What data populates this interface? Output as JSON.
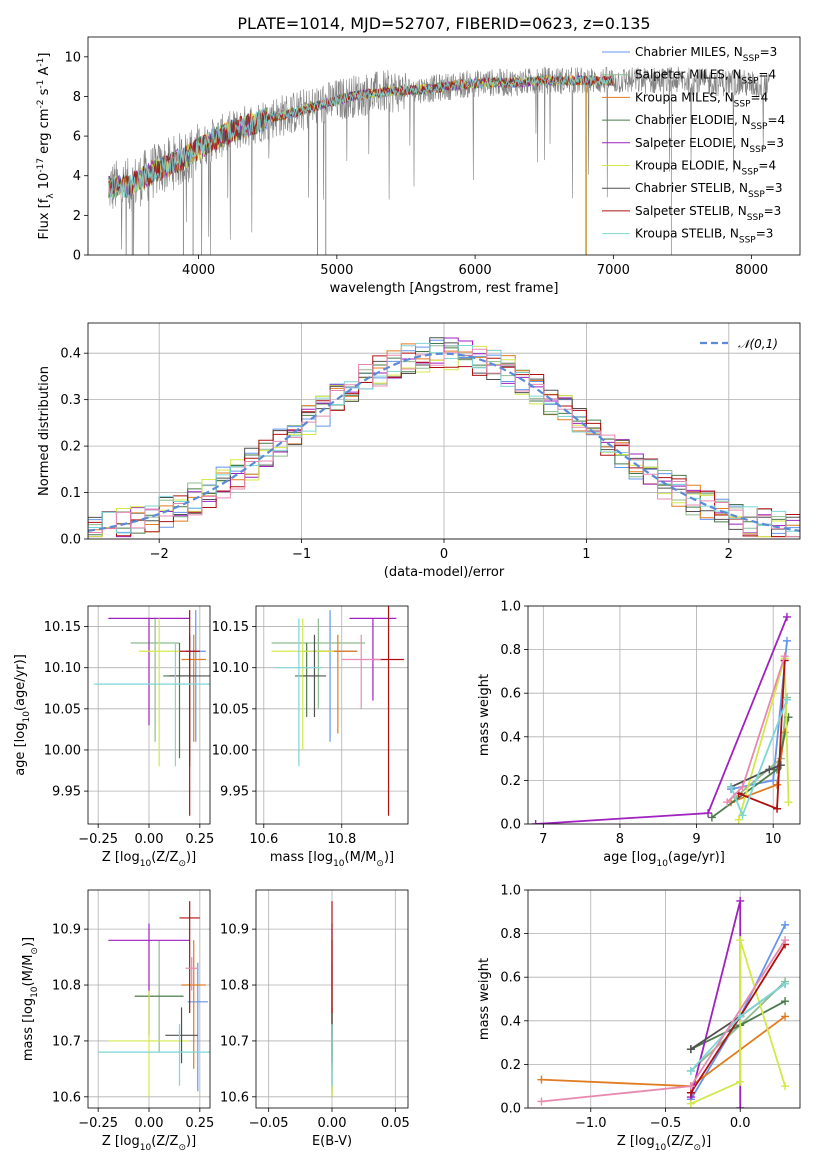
{
  "chart_data": [
    {
      "id": "spectrum",
      "type": "line",
      "title": "PLATE=1014, MJD=52707, FIBERID=0623, z=0.135",
      "xlabel": "wavelength [Angstrom, rest frame]",
      "ylabel": "Flux [f$_\\lambda 10^{-17}$ erg cm$^{-2}$ s$^{-1}$ A$^{-1}$]",
      "xlim": [
        3200,
        8350
      ],
      "ylim": [
        0,
        11
      ],
      "xticks": [
        4000,
        5000,
        6000,
        7000,
        8000
      ],
      "yticks": [
        0,
        2,
        4,
        6,
        8,
        10
      ],
      "grid": false,
      "legend_position": "upper right",
      "continuum": {
        "x": [
          3350,
          3500,
          3700,
          3900,
          4100,
          4300,
          4500,
          4700,
          4900,
          5100,
          5300,
          5500,
          5700,
          5900,
          6100,
          6300,
          6500,
          6700,
          6900,
          7100,
          7300,
          7500,
          7700,
          7900,
          8100
        ],
        "y": [
          3.4,
          3.5,
          4.3,
          4.9,
          5.8,
          6.4,
          6.9,
          7.2,
          7.6,
          8.0,
          8.2,
          8.3,
          8.4,
          8.6,
          8.7,
          8.7,
          8.8,
          8.8,
          8.8,
          8.8,
          8.8,
          8.8,
          8.7,
          8.7,
          8.5
        ]
      },
      "data_x_range": [
        3350,
        8130
      ],
      "model_x_range": [
        3350,
        7000
      ],
      "series": [
        {
          "name": "Chabrier MILES, N$_{SSP}$=3",
          "color": "#6495ed"
        },
        {
          "name": "Salpeter MILES, N$_{SSP}$=4",
          "color": "#8fbc8f"
        },
        {
          "name": "Kroupa MILES, N$_{SSP}$=4",
          "color": "#e07b20"
        },
        {
          "name": "Chabrier ELODIE, N$_{SSP}$=4",
          "color": "#4a7a4a"
        },
        {
          "name": "Salpeter ELODIE, N$_{SSP}$=3",
          "color": "#a020c0"
        },
        {
          "name": "Kroupa ELODIE, N$_{SSP}$=4",
          "color": "#d4e84a"
        },
        {
          "name": "Chabrier STELIB, N$_{SSP}$=3",
          "color": "#505050"
        },
        {
          "name": "Salpeter STELIB, N$_{SSP}$=3",
          "color": "#b01010"
        },
        {
          "name": "Kroupa STELIB, N$_{SSP}$=3",
          "color": "#7fd6d6"
        }
      ]
    },
    {
      "id": "residuals",
      "type": "bar",
      "xlabel": "(data-model)/error",
      "ylabel": "Normed distribution",
      "xlim": [
        -2.5,
        2.5
      ],
      "ylim": [
        0,
        0.465
      ],
      "xticks": [
        -2,
        -1,
        0,
        1,
        2
      ],
      "yticks": [
        0.0,
        0.1,
        0.2,
        0.3,
        0.4
      ],
      "grid": true,
      "legend_position": "upper right",
      "legend": "$\\mathcal{N}(0,1)$",
      "normal_curve": {
        "mean": 0,
        "sigma": 1,
        "color": "#5b8bd6"
      },
      "bin_width": 0.1,
      "bin_start": -2.5,
      "hist_colors": [
        "#6495ed",
        "#8fbc8f",
        "#e07b20",
        "#4a7a4a",
        "#a020c0",
        "#d4e84a",
        "#505050",
        "#b01010",
        "#7fd6d6",
        "#e88ab0"
      ]
    },
    {
      "id": "age-vs-Z",
      "type": "scatter",
      "xlabel": "Z [log$_{10}$(Z/Z$_\\odot$)]",
      "ylabel": "age  [log$_{10}$(age/yr)]",
      "xlim": [
        -0.3,
        0.3
      ],
      "ylim": [
        9.91,
        10.175
      ],
      "xticks": [
        -0.25,
        0.0,
        0.25
      ],
      "xtick_labels": [
        "−0.25",
        "0.00",
        "0.25"
      ],
      "yticks": [
        9.95,
        10.0,
        10.05,
        10.1,
        10.15
      ],
      "ytick_labels": [
        "9.95",
        "10.00",
        "10.05",
        "10.10",
        "10.15"
      ],
      "grid": true,
      "points": [
        {
          "x": 0.23,
          "y": 10.12,
          "xerr": [
            0.05,
            0.05
          ],
          "yerr": [
            0.11,
            0.05
          ],
          "color": "#6495ed"
        },
        {
          "x": 0.03,
          "y": 10.13,
          "xerr": [
            0.12,
            0.12
          ],
          "yerr": [
            0.12,
            0.03
          ],
          "color": "#8fbc8f"
        },
        {
          "x": 0.22,
          "y": 10.11,
          "xerr": [
            0.06,
            0.06
          ],
          "yerr": [
            0.1,
            0.03
          ],
          "color": "#e07b20"
        },
        {
          "x": 0.15,
          "y": 10.09,
          "xerr": [
            0.08,
            0.08
          ],
          "yerr": [
            0.1,
            0.04
          ],
          "color": "#4a7a4a"
        },
        {
          "x": 0.0,
          "y": 10.16,
          "xerr": [
            0.2,
            0.2
          ],
          "yerr": [
            0.13,
            0.0
          ],
          "color": "#a020c0"
        },
        {
          "x": 0.05,
          "y": 10.12,
          "xerr": [
            0.1,
            0.1
          ],
          "yerr": [
            0.14,
            0.04
          ],
          "color": "#d4e84a"
        },
        {
          "x": 0.2,
          "y": 10.09,
          "xerr": [
            0.1,
            0.1
          ],
          "yerr": [
            0.11,
            0.05
          ],
          "color": "#505050"
        },
        {
          "x": 0.2,
          "y": 10.12,
          "xerr": [
            0.05,
            0.05
          ],
          "yerr": [
            0.2,
            0.05
          ],
          "color": "#b01010"
        },
        {
          "x": 0.13,
          "y": 10.08,
          "xerr": [
            0.4,
            0.4
          ],
          "yerr": [
            0.1,
            0.05
          ],
          "color": "#7fd6d6"
        }
      ]
    },
    {
      "id": "age-vs-mass",
      "type": "scatter",
      "xlabel": "mass [log$_{10}$(M/M$_\\odot$)]",
      "xlim": [
        10.58,
        10.97
      ],
      "ylim": [
        9.91,
        10.175
      ],
      "xticks": [
        10.6,
        10.8
      ],
      "xtick_labels": [
        "10.6",
        "10.8"
      ],
      "yticks": [
        9.95,
        10.0,
        10.05,
        10.1,
        10.15
      ],
      "ytick_labels": [
        "9.95",
        "10.00",
        "10.05",
        "10.10",
        "10.15"
      ],
      "grid": true,
      "points": [
        {
          "x": 10.77,
          "y": 10.12,
          "xerr": [
            0.07,
            0.07
          ],
          "yerr": [
            0.11,
            0.05
          ],
          "color": "#6495ed"
        },
        {
          "x": 10.74,
          "y": 10.13,
          "xerr": [
            0.12,
            0.12
          ],
          "yerr": [
            0.08,
            0.03
          ],
          "color": "#8fbc8f"
        },
        {
          "x": 10.79,
          "y": 10.12,
          "xerr": [
            0.05,
            0.05
          ],
          "yerr": [
            0.1,
            0.02
          ],
          "color": "#e07b20"
        },
        {
          "x": 10.71,
          "y": 10.09,
          "xerr": [
            0.03,
            0.03
          ],
          "yerr": [
            0.05,
            0.04
          ],
          "color": "#4a7a4a"
        },
        {
          "x": 10.88,
          "y": 10.16,
          "xerr": [
            0.06,
            0.06
          ],
          "yerr": [
            0.1,
            0.0
          ],
          "color": "#a020c0"
        },
        {
          "x": 10.7,
          "y": 10.12,
          "xerr": [
            0.08,
            0.08
          ],
          "yerr": [
            0.12,
            0.04
          ],
          "color": "#d4e84a"
        },
        {
          "x": 10.73,
          "y": 10.09,
          "xerr": [
            0.03,
            0.03
          ],
          "yerr": [
            0.05,
            0.05
          ],
          "color": "#505050"
        },
        {
          "x": 10.92,
          "y": 10.11,
          "xerr": [
            0.04,
            0.04
          ],
          "yerr": [
            0.19,
            0.07
          ],
          "color": "#b01010"
        },
        {
          "x": 10.69,
          "y": 10.1,
          "xerr": [
            0.06,
            0.06
          ],
          "yerr": [
            0.12,
            0.06
          ],
          "color": "#7fd6d6"
        },
        {
          "x": 10.85,
          "y": 10.11,
          "xerr": [
            0.05,
            0.05
          ],
          "yerr": [
            0.06,
            0.03
          ],
          "color": "#e88ab0"
        }
      ]
    },
    {
      "id": "mass-weight-vs-age",
      "type": "line",
      "xlabel": "age  [log$_{10}$(age/yr)]",
      "ylabel": "mass weight",
      "xlim": [
        6.8,
        10.35
      ],
      "ylim": [
        0,
        1.0
      ],
      "xticks": [
        7,
        8,
        9,
        10
      ],
      "xtick_labels": [
        "7",
        "8",
        "9",
        "10"
      ],
      "yticks": [
        0,
        0.2,
        0.4,
        0.6,
        0.8,
        1.0
      ],
      "ytick_labels": [
        "0.0",
        "0.2",
        "0.4",
        "0.6",
        "0.8",
        "1.0"
      ],
      "grid": true,
      "series": [
        {
          "color": "#6495ed",
          "x": [
            9.45,
            10.0,
            10.18
          ],
          "y": [
            0.16,
            0.2,
            0.84
          ]
        },
        {
          "color": "#8fbc8f",
          "x": [
            9.5,
            10.1,
            10.18
          ],
          "y": [
            0.12,
            0.3,
            0.58
          ]
        },
        {
          "color": "#e07b20",
          "x": [
            9.45,
            10.05,
            10.15
          ],
          "y": [
            0.1,
            0.18,
            0.42
          ]
        },
        {
          "color": "#4a7a4a",
          "x": [
            9.2,
            10.05,
            10.2
          ],
          "y": [
            0.03,
            0.25,
            0.49
          ]
        },
        {
          "color": "#a020c0",
          "x": [
            6.9,
            9.15,
            10.18
          ],
          "y": [
            0.0,
            0.05,
            0.95
          ]
        },
        {
          "color": "#d4e84a",
          "x": [
            9.55,
            10.15,
            10.2
          ],
          "y": [
            0.02,
            0.76,
            0.1
          ]
        },
        {
          "color": "#505050",
          "x": [
            9.45,
            9.95,
            10.1
          ],
          "y": [
            0.17,
            0.25,
            0.27
          ]
        },
        {
          "color": "#b01010",
          "x": [
            9.55,
            10.05,
            10.15
          ],
          "y": [
            0.14,
            0.07,
            0.75
          ]
        },
        {
          "color": "#7fd6d6",
          "x": [
            9.45,
            9.6,
            10.18
          ],
          "y": [
            0.17,
            0.04,
            0.57
          ]
        },
        {
          "color": "#e88ab0",
          "x": [
            9.4,
            9.6,
            10.15
          ],
          "y": [
            0.1,
            0.17,
            0.77
          ]
        }
      ]
    },
    {
      "id": "mass-vs-Z",
      "type": "scatter",
      "xlabel": "Z [log$_{10}$(Z/Z$_\\odot$)]",
      "ylabel": "mass [log$_{10}$(M/M$_\\odot$)]",
      "xlim": [
        -0.3,
        0.3
      ],
      "ylim": [
        10.58,
        10.97
      ],
      "xticks": [
        -0.25,
        0.0,
        0.25
      ],
      "xtick_labels": [
        "−0.25",
        "0.00",
        "0.25"
      ],
      "yticks": [
        10.6,
        10.7,
        10.8,
        10.9
      ],
      "ytick_labels": [
        "10.6",
        "10.7",
        "10.8",
        "10.9"
      ],
      "grid": true,
      "points": [
        {
          "x": 0.24,
          "y": 10.77,
          "xerr": [
            0.05,
            0.05
          ],
          "yerr": [
            0.16,
            0.07
          ],
          "color": "#6495ed"
        },
        {
          "x": 0.05,
          "y": 10.78,
          "xerr": [
            0.12,
            0.12
          ],
          "yerr": [
            0.1,
            0.1
          ],
          "color": "#8fbc8f"
        },
        {
          "x": 0.22,
          "y": 10.8,
          "xerr": [
            0.06,
            0.06
          ],
          "yerr": [
            0.15,
            0.08
          ],
          "color": "#e07b20"
        },
        {
          "x": 0.05,
          "y": 10.78,
          "xerr": [
            0.12,
            0.12
          ],
          "yerr": [
            0.0,
            0.0
          ],
          "color": "#4a7a4a"
        },
        {
          "x": -0.0,
          "y": 10.88,
          "xerr": [
            0.2,
            0.2
          ],
          "yerr": [
            0.17,
            0.03
          ],
          "color": "#a020c0"
        },
        {
          "x": 0.0,
          "y": 10.7,
          "xerr": [
            0.2,
            0.2
          ],
          "yerr": [
            0.1,
            0.09
          ],
          "color": "#d4e84a"
        },
        {
          "x": 0.16,
          "y": 10.71,
          "xerr": [
            0.08,
            0.08
          ],
          "yerr": [
            0.05,
            0.05
          ],
          "color": "#505050"
        },
        {
          "x": 0.2,
          "y": 10.92,
          "xerr": [
            0.05,
            0.05
          ],
          "yerr": [
            0.17,
            0.03
          ],
          "color": "#b01010"
        },
        {
          "x": 0.15,
          "y": 10.68,
          "xerr": [
            0.4,
            0.4
          ],
          "yerr": [
            0.06,
            0.05
          ],
          "color": "#7fd6d6"
        },
        {
          "x": 0.21,
          "y": 10.83,
          "xerr": [
            0.03,
            0.03
          ],
          "yerr": [
            0.04,
            0.02
          ],
          "color": "#e88ab0"
        }
      ]
    },
    {
      "id": "mass-vs-ebv",
      "type": "scatter",
      "xlabel": "E(B-V)",
      "xlim": [
        -0.06,
        0.06
      ],
      "ylim": [
        10.58,
        10.97
      ],
      "xticks": [
        -0.05,
        0.0,
        0.05
      ],
      "xtick_labels": [
        "−0.05",
        "0.00",
        "0.05"
      ],
      "yticks": [
        10.6,
        10.7,
        10.8,
        10.9
      ],
      "ytick_labels": [
        "10.6",
        "10.7",
        "10.8",
        "10.9"
      ],
      "grid": true,
      "points": [
        {
          "x": 0.0,
          "y": 10.77,
          "yerr": [
            0.16,
            0.07
          ],
          "color": "#6495ed"
        },
        {
          "x": 0.0,
          "y": 10.78,
          "yerr": [
            0.1,
            0.1
          ],
          "color": "#8fbc8f"
        },
        {
          "x": 0.0,
          "y": 10.8,
          "yerr": [
            0.15,
            0.08
          ],
          "color": "#e07b20"
        },
        {
          "x": 0.0,
          "y": 10.7,
          "yerr": [
            0.1,
            0.05
          ],
          "color": "#4a7a4a"
        },
        {
          "x": 0.0,
          "y": 10.88,
          "yerr": [
            0.17,
            0.03
          ],
          "color": "#a020c0"
        },
        {
          "x": 0.0,
          "y": 10.7,
          "yerr": [
            0.1,
            0.09
          ],
          "color": "#d4e84a"
        },
        {
          "x": 0.0,
          "y": 10.71,
          "yerr": [
            0.05,
            0.05
          ],
          "color": "#505050"
        },
        {
          "x": 0.0,
          "y": 10.92,
          "yerr": [
            0.17,
            0.03
          ],
          "color": "#b01010"
        },
        {
          "x": 0.0,
          "y": 10.68,
          "yerr": [
            0.06,
            0.05
          ],
          "color": "#7fd6d6"
        }
      ]
    },
    {
      "id": "mass-weight-vs-Z",
      "type": "line",
      "xlabel": "Z [log$_{10}$(Z/Z$_\\odot$)]",
      "ylabel": "mass weight",
      "xlim": [
        -1.42,
        0.4
      ],
      "ylim": [
        0,
        1.0
      ],
      "xticks": [
        -1.0,
        -0.5,
        0.0
      ],
      "xtick_labels": [
        "−1.0",
        "−0.5",
        "0.0"
      ],
      "yticks": [
        0,
        0.2,
        0.4,
        0.6,
        0.8,
        1.0
      ],
      "ytick_labels": [
        "0.0",
        "0.2",
        "0.4",
        "0.6",
        "0.8",
        "1.0"
      ],
      "grid": true,
      "series": [
        {
          "color": "#6495ed",
          "x": [
            -0.33,
            0.0,
            0.3
          ],
          "y": [
            0.04,
            0.42,
            0.84
          ]
        },
        {
          "color": "#8fbc8f",
          "x": [
            -0.33,
            0.0,
            0.3
          ],
          "y": [
            0.17,
            0.38,
            0.58
          ]
        },
        {
          "color": "#e07b20",
          "x": [
            -1.33,
            -0.33,
            0.3
          ],
          "y": [
            0.13,
            0.1,
            0.42
          ]
        },
        {
          "color": "#4a7a4a",
          "x": [
            -0.33,
            0.0,
            0.3
          ],
          "y": [
            0.27,
            0.38,
            0.49
          ]
        },
        {
          "color": "#a020c0",
          "x": [
            -0.33,
            0.0,
            0.0
          ],
          "y": [
            0.05,
            0.95,
            0.0
          ]
        },
        {
          "color": "#d4e84a",
          "x": [
            -0.33,
            0.0,
            0.0,
            0.3
          ],
          "y": [
            0.02,
            0.12,
            0.77,
            0.1
          ]
        },
        {
          "color": "#505050",
          "x": [
            -0.33,
            0.0,
            0.3
          ],
          "y": [
            0.27,
            0.42,
            0.57
          ]
        },
        {
          "color": "#b01010",
          "x": [
            -0.33,
            0.0,
            0.3
          ],
          "y": [
            0.07,
            0.42,
            0.75
          ]
        },
        {
          "color": "#7fd6d6",
          "x": [
            -0.33,
            0.0,
            0.3
          ],
          "y": [
            0.17,
            0.42,
            0.57
          ]
        },
        {
          "color": "#e88ab0",
          "x": [
            -1.33,
            -0.33,
            0.3
          ],
          "y": [
            0.03,
            0.1,
            0.77
          ]
        }
      ]
    }
  ]
}
